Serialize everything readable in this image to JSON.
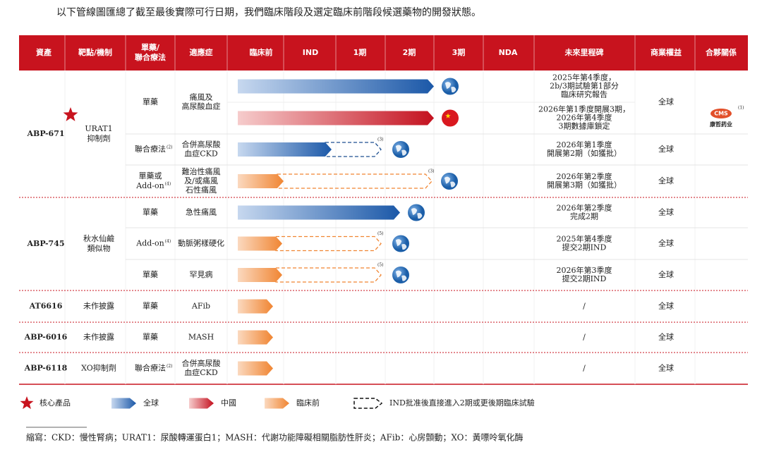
{
  "intro": "以下管線圖匯總了截至最後實際可行日期，我們臨床階段及選定臨床前階段候選藥物的開發狀態。",
  "header": {
    "columns": [
      [
        "資產"
      ],
      [
        "靶點/機制"
      ],
      [
        "單藥/",
        "聯合療法"
      ],
      [
        "適應症"
      ],
      [
        "臨床前"
      ],
      [
        "IND"
      ],
      [
        "1期"
      ],
      [
        "2期"
      ],
      [
        "3期"
      ],
      [
        "NDA"
      ],
      [
        "未來里程碑"
      ],
      [
        "商業權益"
      ],
      [
        "合夥關係"
      ]
    ]
  },
  "assets": [
    {
      "name": "ABP-671",
      "target": [
        "URAT1",
        "抑制劑"
      ],
      "partner": {
        "logo": "CMS",
        "name": "康哲药业",
        "note": "(1)"
      },
      "rows": [
        {
          "therapy": [
            "單藥"
          ],
          "indication": [
            "痛風及",
            "高尿酸血症"
          ],
          "rights": "全球",
          "tracks": [
            {
              "milestone": [
                "2025年第4季度，",
                "2b/3期試驗第1部分",
                "臨床研究報告"
              ]
            },
            {
              "milestone": [
                "2026年第1季度開展3期，",
                "2026年第4季度",
                "3期數據庫鎖定"
              ]
            }
          ]
        },
        {
          "therapy": [
            "聯合療法"
          ],
          "therapy_note": "(2)",
          "indication": [
            "合併高尿酸",
            "血症CKD"
          ],
          "rights": "全球",
          "tracks": [
            {
              "note": "(3)",
              "milestone": [
                "2026年第1季度",
                "開展第2期（如獲批）"
              ]
            }
          ]
        },
        {
          "therapy": [
            "單藥或",
            "Add-on"
          ],
          "therapy_note": "(4)",
          "indication": [
            "難治性痛風",
            "及/或痛風",
            "石性痛風"
          ],
          "rights": "全球",
          "tracks": [
            {
              "note": "(3)",
              "milestone": [
                "2026年第2季度",
                "開展第3期（如獲批）"
              ]
            }
          ]
        }
      ]
    },
    {
      "name": "ABP-745",
      "target": [
        "秋水仙鹼",
        "類似物"
      ],
      "rows": [
        {
          "therapy": [
            "單藥"
          ],
          "indication": [
            "急性痛風"
          ],
          "rights": "全球",
          "tracks": [
            {
              "milestone": [
                "2026年第2季度",
                "完成2期"
              ]
            }
          ]
        },
        {
          "therapy": [
            "Add-on"
          ],
          "therapy_note": "(4)",
          "indication": [
            "動脈粥樣硬化"
          ],
          "rights": "全球",
          "tracks": [
            {
              "note": "(5)",
              "milestone": [
                "2025年第4季度",
                "提交2期IND"
              ]
            }
          ]
        },
        {
          "therapy": [
            "單藥"
          ],
          "indication": [
            "罕見病"
          ],
          "rights": "全球",
          "tracks": [
            {
              "note": "(5)",
              "milestone": [
                "2026年第3季度",
                "提交2期IND"
              ]
            }
          ]
        }
      ]
    },
    {
      "name": "AT6616",
      "target": [
        "未作披露"
      ],
      "rows": [
        {
          "therapy": [
            "單藥"
          ],
          "indication": [
            "AFib"
          ],
          "rights": "全球",
          "tracks": [
            {
              "milestone": [
                "/"
              ]
            }
          ]
        }
      ]
    },
    {
      "name": "ABP-6016",
      "target": [
        "未作披露"
      ],
      "rows": [
        {
          "therapy": [
            "單藥"
          ],
          "indication": [
            "MASH"
          ],
          "rights": "全球",
          "tracks": [
            {
              "milestone": [
                "/"
              ]
            }
          ]
        }
      ]
    },
    {
      "name": "ABP-6118",
      "target": [
        "XO抑制劑"
      ],
      "rows": [
        {
          "therapy": [
            "聯合療法"
          ],
          "therapy_note": "(2)",
          "indication": [
            "合併高尿酸",
            "血症CKD"
          ],
          "rights": "全球",
          "tracks": [
            {
              "milestone": [
                "/"
              ]
            }
          ]
        }
      ]
    }
  ],
  "legend": {
    "core": "核心產品",
    "global": "全球",
    "china": "中國",
    "preclinical": "臨床前",
    "dashed": "IND批准後直接進入2期或更後期臨床試驗"
  },
  "footnote": "縮寫：CKD：慢性腎病；URAT1：尿酸轉運蛋白1；MASH：代謝功能障礙相關脂肪性肝炎；AFib：心房顫動；XO：黃嘌呤氧化酶"
}
